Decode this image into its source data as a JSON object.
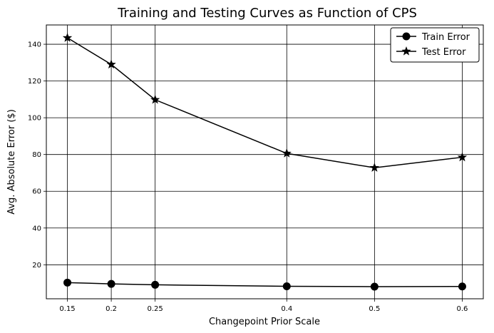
{
  "chart_data": {
    "type": "line",
    "title": "Training and Testing Curves as Function of CPS",
    "xlabel": "Changepoint Prior Scale",
    "ylabel": "Avg. Absolute Error ($)",
    "x": [
      0.15,
      0.2,
      0.25,
      0.4,
      0.5,
      0.6
    ],
    "x_tick_labels": [
      "0.15",
      "0.2",
      "0.25",
      "0.4",
      "0.5",
      "0.6"
    ],
    "y_ticks": [
      20,
      40,
      60,
      80,
      100,
      120,
      140
    ],
    "y_tick_labels": [
      "20",
      "40",
      "60",
      "80",
      "100",
      "120",
      "140"
    ],
    "xlim": [
      0.126,
      0.624
    ],
    "ylim": [
      1.5,
      150.5
    ],
    "grid": true,
    "legend_position": "top-right",
    "series": [
      {
        "name": "Train Error",
        "marker": "circle",
        "color": "#000000",
        "values": [
          10.3,
          9.6,
          9.1,
          8.3,
          8.1,
          8.2
        ]
      },
      {
        "name": "Test Error",
        "marker": "star",
        "color": "#000000",
        "values": [
          143.5,
          129.0,
          109.8,
          80.6,
          72.8,
          78.5
        ]
      }
    ]
  }
}
